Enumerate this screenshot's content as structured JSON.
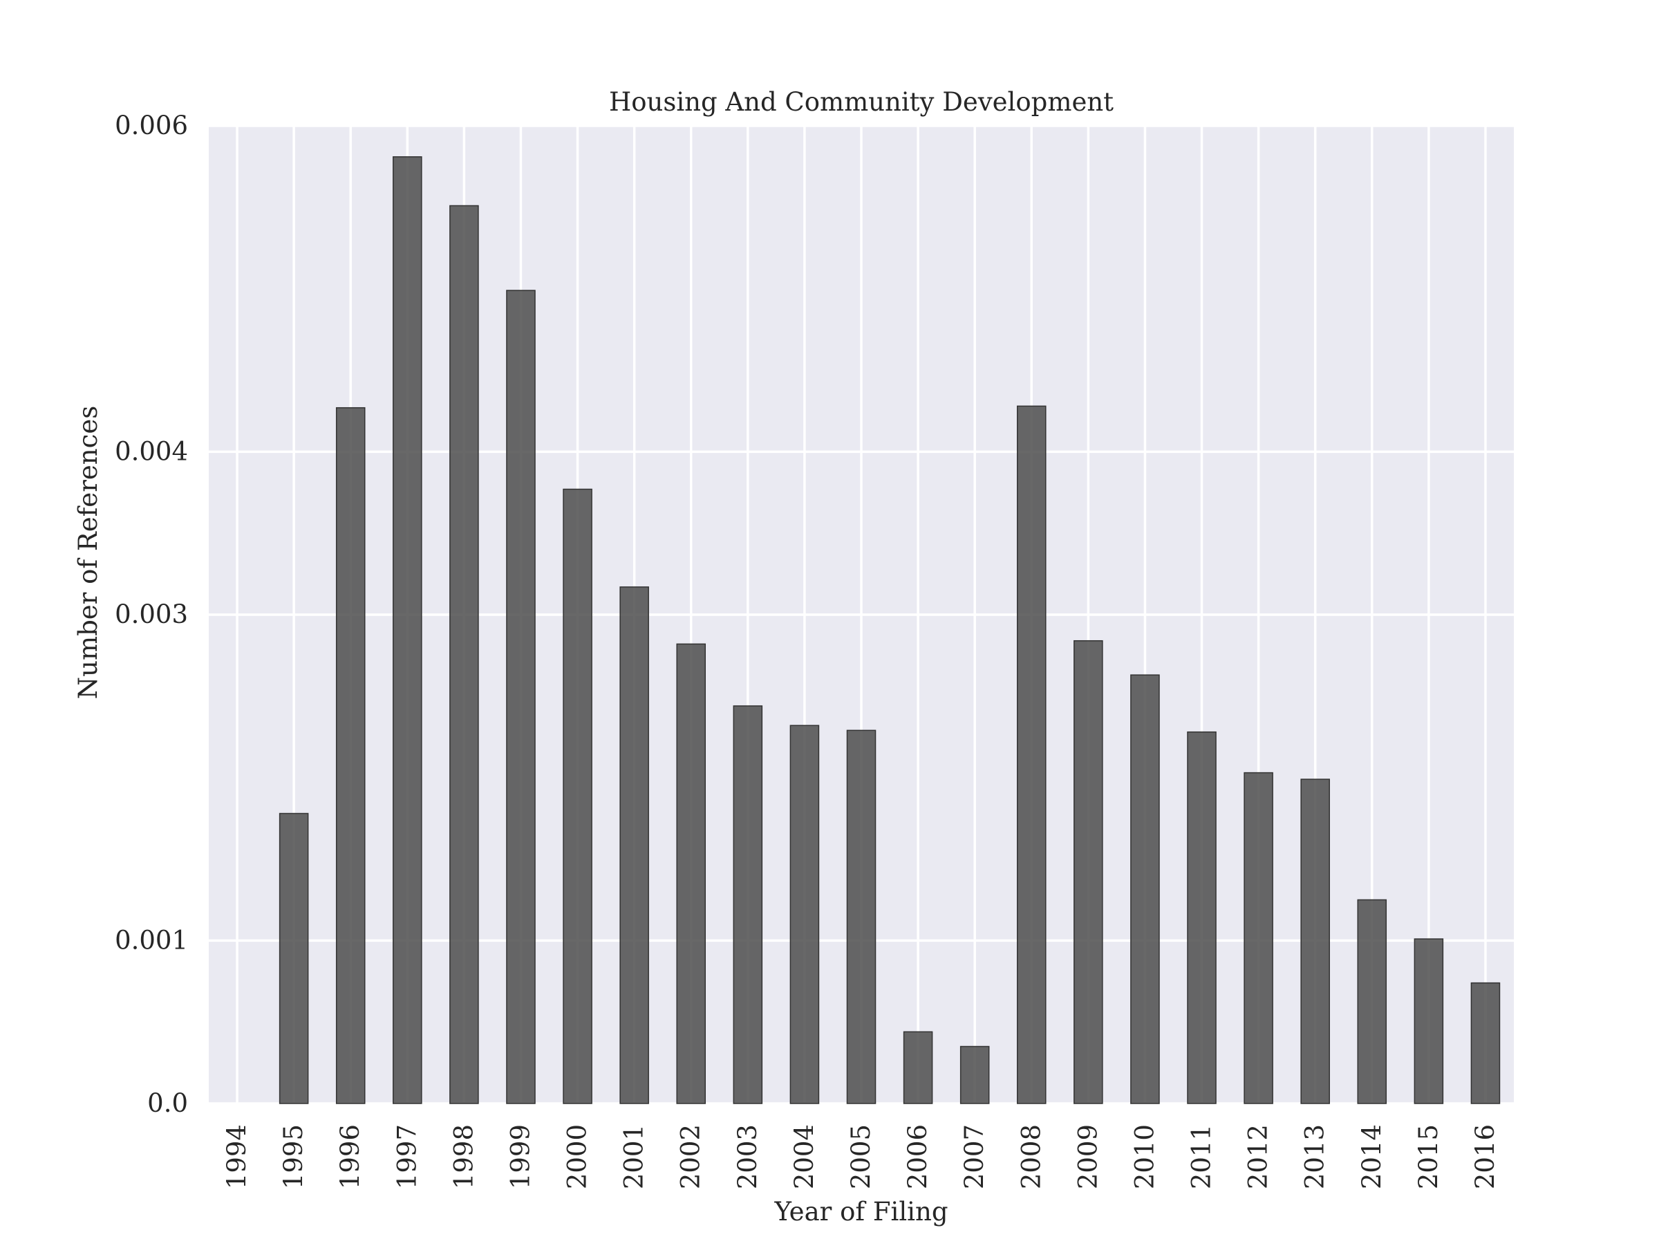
{
  "chart_data": {
    "type": "bar",
    "title": "Housing And Community Development",
    "xlabel": "Year of Filing",
    "ylabel": "Number of References",
    "categories": [
      "1994",
      "1995",
      "1996",
      "1997",
      "1998",
      "1999",
      "2000",
      "2001",
      "2002",
      "2003",
      "2004",
      "2005",
      "2006",
      "2007",
      "2008",
      "2009",
      "2010",
      "2011",
      "2012",
      "2013",
      "2014",
      "2015",
      "2016"
    ],
    "values": [
      0.0,
      0.00178,
      0.00427,
      0.00581,
      0.00551,
      0.00499,
      0.00377,
      0.00317,
      0.00282,
      0.00244,
      0.00232,
      0.00229,
      0.00044,
      0.00035,
      0.00428,
      0.00284,
      0.00263,
      0.00228,
      0.00203,
      0.00199,
      0.00125,
      0.00101,
      0.00074
    ],
    "yticks": [
      0.0,
      0.001,
      0.003,
      0.004,
      0.006
    ],
    "ytick_labels": [
      "0.0",
      "0.001",
      "0.003",
      "0.004",
      "0.006"
    ],
    "ylim": [
      0,
      0.006
    ],
    "grid": true,
    "background_color": "#eaeaf2",
    "bar_color": "#4d4d4d"
  }
}
